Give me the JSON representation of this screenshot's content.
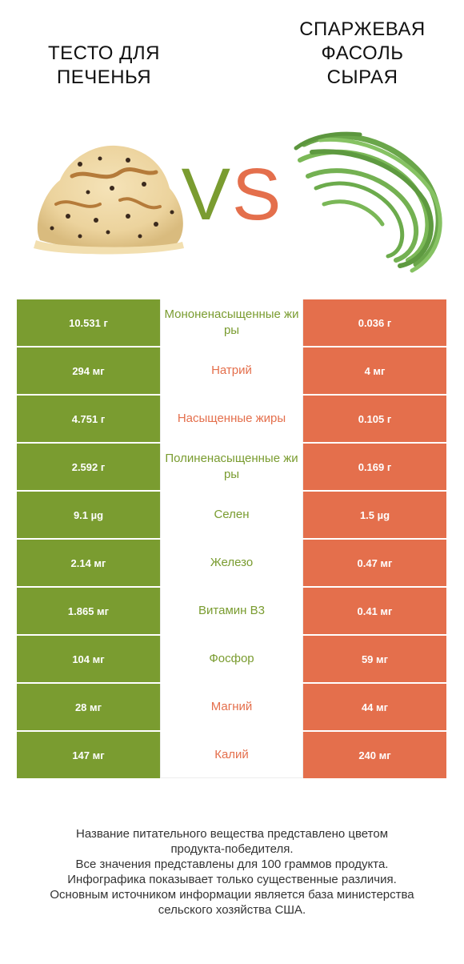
{
  "header": {
    "left_title": "ТЕСТО ДЛЯ\nПЕЧЕНЬЯ",
    "right_title": "СПАРЖЕВАЯ\nФАСОЛЬ\nСЫРАЯ",
    "vs_v": "V",
    "vs_s": "S"
  },
  "colors": {
    "left": "#7a9c30",
    "right": "#e46f4c"
  },
  "rows": [
    {
      "left": "10.531 г",
      "name": "Мононенасыщенные жиры",
      "right": "0.036 г",
      "winner": "left"
    },
    {
      "left": "294 мг",
      "name": "Натрий",
      "right": "4 мг",
      "winner": "right"
    },
    {
      "left": "4.751 г",
      "name": "Насыщенные жиры",
      "right": "0.105 г",
      "winner": "right"
    },
    {
      "left": "2.592 г",
      "name": "Полиненасыщенные жиры",
      "right": "0.169 г",
      "winner": "left"
    },
    {
      "left": "9.1 µg",
      "name": "Селен",
      "right": "1.5 µg",
      "winner": "left"
    },
    {
      "left": "2.14 мг",
      "name": "Железо",
      "right": "0.47 мг",
      "winner": "left"
    },
    {
      "left": "1.865 мг",
      "name": "Витамин B3",
      "right": "0.41 мг",
      "winner": "left"
    },
    {
      "left": "104 мг",
      "name": "Фосфор",
      "right": "59 мг",
      "winner": "left"
    },
    {
      "left": "28 мг",
      "name": "Магний",
      "right": "44 мг",
      "winner": "right"
    },
    {
      "left": "147 мг",
      "name": "Калий",
      "right": "240 мг",
      "winner": "right"
    }
  ],
  "footer": {
    "line1": "Название питательного вещества представлено цветом",
    "line2": "продукта-победителя.",
    "line3": "Все значения представлены для 100 граммов продукта.",
    "line4": "Инфографика показывает только существенные различия.",
    "line5": "Основным источником информации является база министерства",
    "line6": "сельского хозяйства США."
  }
}
